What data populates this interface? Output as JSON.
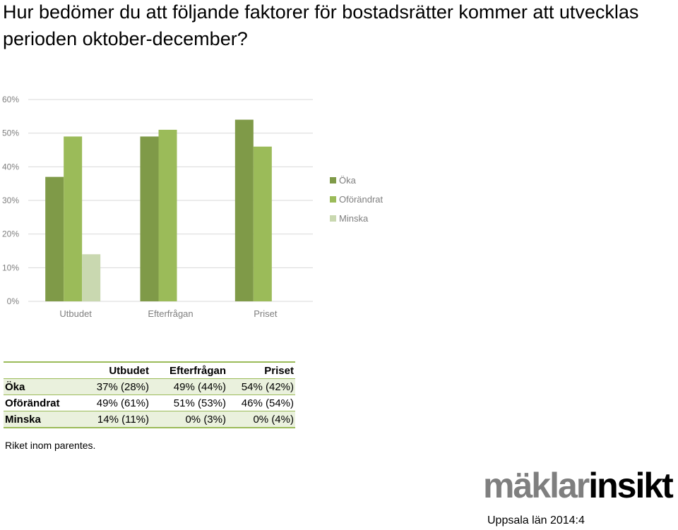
{
  "title": "Hur bedömer du att följande faktorer för bostadsrätter kommer att utvecklas perioden oktober-december?",
  "chart_data": {
    "type": "bar",
    "categories": [
      "Utbudet",
      "Efterfrågan",
      "Priset"
    ],
    "series": [
      {
        "name": "Öka",
        "values": [
          37,
          49,
          54
        ],
        "color": "#7f9a48"
      },
      {
        "name": "Oförändrat",
        "values": [
          49,
          51,
          46
        ],
        "color": "#9bbb59"
      },
      {
        "name": "Minska",
        "values": [
          14,
          0,
          0
        ],
        "color": "#c9d8b0"
      }
    ],
    "ylim": [
      0,
      60
    ],
    "yticks": [
      "0%",
      "10%",
      "20%",
      "30%",
      "40%",
      "50%",
      "60%"
    ],
    "grid": true,
    "legend": "right",
    "xlabel": "",
    "ylabel": ""
  },
  "table": {
    "headers": [
      "",
      "Utbudet",
      "Efterfrågan",
      "Priset"
    ],
    "rows": [
      {
        "label": "Öka",
        "cells": [
          "37% (28%)",
          "49% (44%)",
          "54% (42%)"
        ]
      },
      {
        "label": "Oförändrat",
        "cells": [
          "49% (61%)",
          "51% (53%)",
          "46% (54%)"
        ]
      },
      {
        "label": "Minska",
        "cells": [
          "14% (11%)",
          "0% (3%)",
          "0% (4%)"
        ]
      }
    ]
  },
  "note": "Riket inom parentes.",
  "logo": {
    "part1": "mäklar",
    "part2": "insikt"
  },
  "period": "Uppsala län 2014:4"
}
